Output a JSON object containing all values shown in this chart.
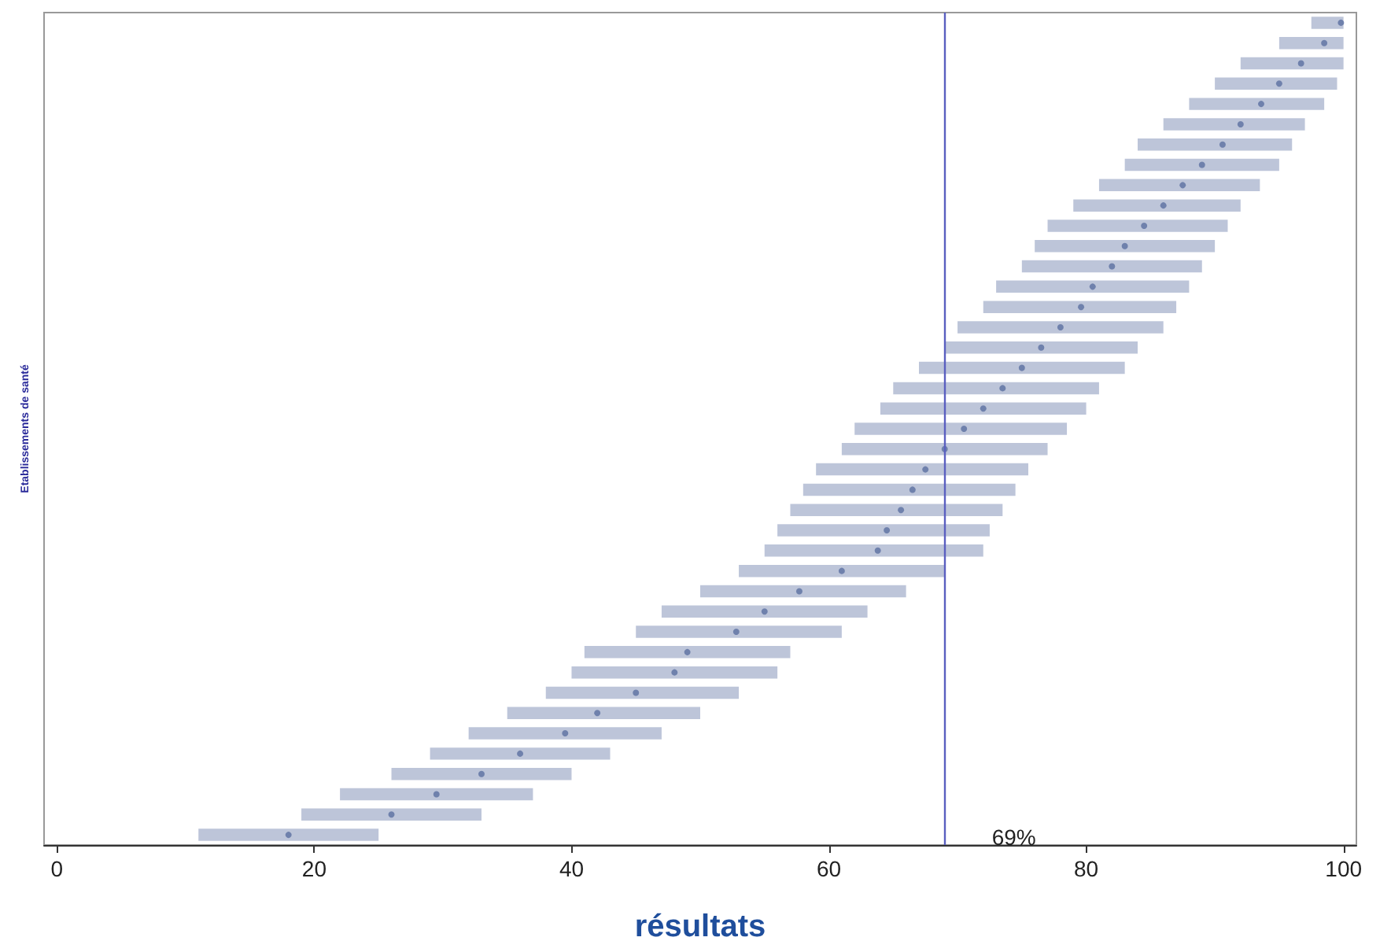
{
  "chart_data": {
    "type": "scatter",
    "orientation": "horizontal",
    "xlabel": "résultats",
    "ylabel": "Etablissements de santé",
    "categories": [
      null,
      null,
      null,
      null,
      null,
      null,
      null,
      null,
      null,
      null,
      null,
      null,
      null,
      null,
      null,
      null,
      null,
      null,
      null,
      null,
      null,
      null,
      null,
      null,
      null,
      null,
      null,
      null,
      null,
      null,
      null,
      null,
      null,
      null,
      null,
      null,
      null,
      null,
      null,
      null,
      null
    ],
    "values": [
      99.8,
      98.5,
      96.7,
      95,
      93.6,
      92,
      90.6,
      89,
      87.5,
      86,
      84.5,
      83,
      82,
      80.5,
      79.6,
      78,
      76.5,
      75,
      73.5,
      72,
      70.5,
      69,
      67.5,
      66.5,
      65.6,
      64.5,
      63.8,
      61,
      57.7,
      55,
      52.8,
      49,
      48,
      45,
      42,
      39.5,
      36,
      33,
      29.5,
      26,
      18
    ],
    "errors": [
      [
        97.5,
        100
      ],
      [
        95,
        100
      ],
      [
        92,
        100
      ],
      [
        90,
        99.5
      ],
      [
        88,
        98.5
      ],
      [
        86,
        97
      ],
      [
        84,
        96
      ],
      [
        83,
        95
      ],
      [
        81,
        93.5
      ],
      [
        79,
        92
      ],
      [
        77,
        91
      ],
      [
        76,
        90
      ],
      [
        75,
        89
      ],
      [
        73,
        88
      ],
      [
        72,
        87
      ],
      [
        70,
        86
      ],
      [
        69,
        84
      ],
      [
        67,
        83
      ],
      [
        65,
        81
      ],
      [
        64,
        80
      ],
      [
        62,
        78.5
      ],
      [
        61,
        77
      ],
      [
        59,
        75.5
      ],
      [
        58,
        74.5
      ],
      [
        57,
        73.5
      ],
      [
        56,
        72.5
      ],
      [
        55,
        72
      ],
      [
        53,
        69
      ],
      [
        50,
        66
      ],
      [
        47,
        63
      ],
      [
        45,
        61
      ],
      [
        41,
        57
      ],
      [
        40,
        56
      ],
      [
        38,
        53
      ],
      [
        35,
        50
      ],
      [
        32,
        47
      ],
      [
        29,
        43
      ],
      [
        26,
        40
      ],
      [
        22,
        37
      ],
      [
        19,
        33
      ],
      [
        11,
        25
      ]
    ],
    "color": "#5b6fa0",
    "marker": "circle",
    "xlim": [
      -1,
      101
    ],
    "xticks": [
      0,
      20,
      40,
      60,
      80,
      100
    ],
    "tick_labels": "x",
    "grid": false,
    "ref_lines": [
      {
        "axis": "x",
        "value": 69,
        "label": "69%",
        "color": "#5a5fc0"
      }
    ]
  }
}
